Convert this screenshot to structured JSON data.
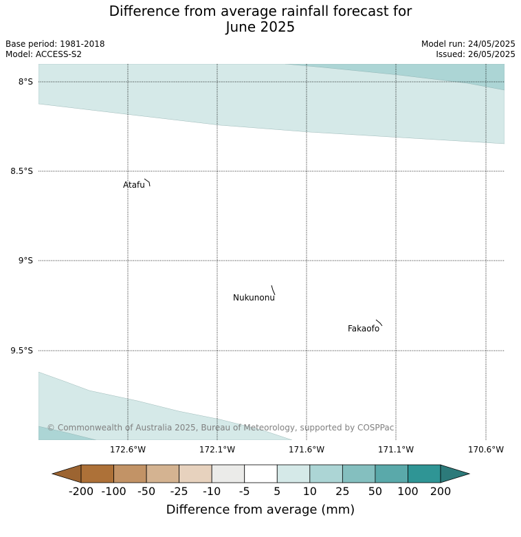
{
  "title": {
    "line1": "Difference from average rainfall forecast for",
    "line2": "June 2025"
  },
  "meta": {
    "base_period": "Base period: 1981-2018",
    "model": "Model: ACCESS-S2",
    "model_run": "Model run: 24/05/2025",
    "issued": "Issued: 26/05/2025"
  },
  "map": {
    "lat_labels": [
      "8°S",
      "8.5°S",
      "9°S",
      "9.5°S"
    ],
    "lon_labels": [
      "172.6°W",
      "172.1°W",
      "171.6°W",
      "171.1°W",
      "170.6°W"
    ],
    "places": [
      "Atafu",
      "Nukunonu",
      "Fakaofo"
    ],
    "copyright": "© Commonwealth of Australia 2025, Bureau of Meteorology, supported by COSPPac"
  },
  "colorbar": {
    "tick_labels": [
      "-200",
      "-100",
      "-50",
      "-25",
      "-10",
      "-5",
      "5",
      "10",
      "25",
      "50",
      "100",
      "200"
    ],
    "colors": [
      "#ad7138",
      "#c29366",
      "#d4b391",
      "#e7d2be",
      "#ebebe9",
      "#ffffff",
      "#d5e9e8",
      "#acd5d5",
      "#84bfbf",
      "#5aa9aa",
      "#2f9595"
    ],
    "under_color": "#9c6431",
    "over_color": "#2c7a7a",
    "label": "Difference from average (mm)"
  }
}
